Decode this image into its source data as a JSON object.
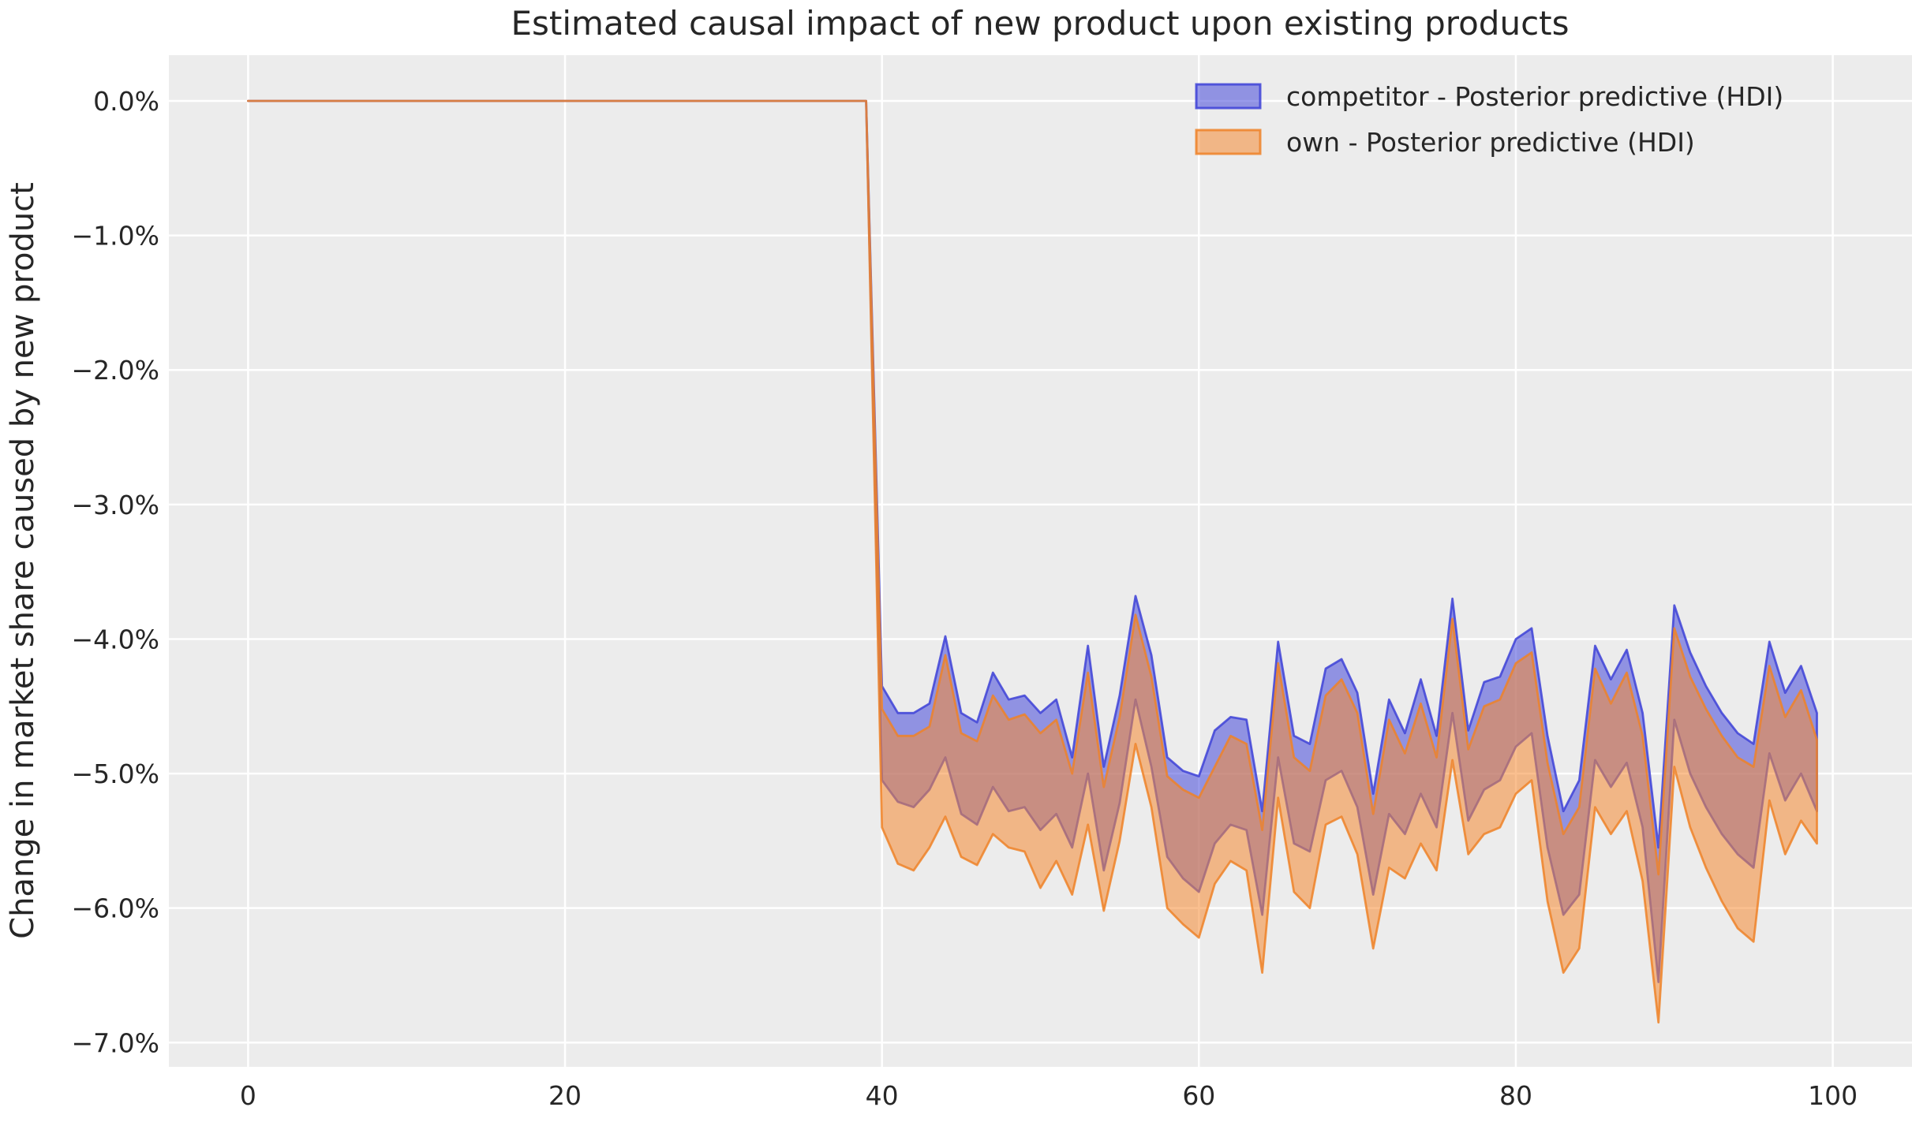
{
  "chart_data": {
    "type": "area",
    "title": "Estimated causal impact of new product upon existing products",
    "ylabel": "Change in market share caused by new product",
    "xlabel": "",
    "plot_bg_color": "#ececec",
    "grid_color": "#ffffff",
    "text_color": "#262626",
    "grid": true,
    "legend_position": "upper-right",
    "xlim": [
      -5,
      105
    ],
    "ylim_pct": [
      -7.18,
      0.34
    ],
    "xticks": [
      {
        "value": 0,
        "label": "0"
      },
      {
        "value": 20,
        "label": "20"
      },
      {
        "value": 40,
        "label": "40"
      },
      {
        "value": 60,
        "label": "60"
      },
      {
        "value": 80,
        "label": "80"
      },
      {
        "value": 100,
        "label": "100"
      }
    ],
    "yticks": [
      {
        "value": 0,
        "label": "0.0%"
      },
      {
        "value": -1,
        "label": "−1.0%"
      },
      {
        "value": -2,
        "label": "−2.0%"
      },
      {
        "value": -3,
        "label": "−3.0%"
      },
      {
        "value": -4,
        "label": "−4.0%"
      },
      {
        "value": -5,
        "label": "−5.0%"
      },
      {
        "value": -6,
        "label": "−6.0%"
      },
      {
        "value": -7,
        "label": "−7.0%"
      }
    ],
    "x": [
      0,
      1,
      2,
      3,
      4,
      5,
      6,
      7,
      8,
      9,
      10,
      11,
      12,
      13,
      14,
      15,
      16,
      17,
      18,
      19,
      20,
      21,
      22,
      23,
      24,
      25,
      26,
      27,
      28,
      29,
      30,
      31,
      32,
      33,
      34,
      35,
      36,
      37,
      38,
      39,
      40,
      41,
      42,
      43,
      44,
      45,
      46,
      47,
      48,
      49,
      50,
      51,
      52,
      53,
      54,
      55,
      56,
      57,
      58,
      59,
      60,
      61,
      62,
      63,
      64,
      65,
      66,
      67,
      68,
      69,
      70,
      71,
      72,
      73,
      74,
      75,
      76,
      77,
      78,
      79,
      80,
      81,
      82,
      83,
      84,
      85,
      86,
      87,
      88,
      89,
      90,
      91,
      92,
      93,
      94,
      95,
      96,
      97,
      98,
      99
    ],
    "treatment_start_x": 40,
    "series": [
      {
        "name": "competitor - Posterior predictive (HDI)",
        "fill_color": "#4549db",
        "fill_opacity": 0.55,
        "edge_color": "#3e42d7",
        "upper_pct": [
          0,
          0,
          0,
          0,
          0,
          0,
          0,
          0,
          0,
          0,
          0,
          0,
          0,
          0,
          0,
          0,
          0,
          0,
          0,
          0,
          0,
          0,
          0,
          0,
          0,
          0,
          0,
          0,
          0,
          0,
          0,
          0,
          0,
          0,
          0,
          0,
          0,
          0,
          0,
          0,
          -4.35,
          -4.55,
          -4.55,
          -4.48,
          -3.98,
          -4.55,
          -4.62,
          -4.25,
          -4.45,
          -4.42,
          -4.55,
          -4.45,
          -4.88,
          -4.05,
          -4.95,
          -4.42,
          -3.68,
          -4.12,
          -4.88,
          -4.98,
          -5.02,
          -4.68,
          -4.58,
          -4.6,
          -5.28,
          -4.02,
          -4.72,
          -4.78,
          -4.22,
          -4.15,
          -4.4,
          -5.15,
          -4.45,
          -4.7,
          -4.3,
          -4.72,
          -3.7,
          -4.68,
          -4.32,
          -4.28,
          -4.0,
          -3.92,
          -4.72,
          -5.28,
          -5.05,
          -4.05,
          -4.3,
          -4.08,
          -4.55,
          -5.55,
          -3.75,
          -4.1,
          -4.35,
          -4.55,
          -4.7,
          -4.78,
          -4.02,
          -4.4,
          -4.2,
          -4.55
        ],
        "lower_pct": [
          0,
          0,
          0,
          0,
          0,
          0,
          0,
          0,
          0,
          0,
          0,
          0,
          0,
          0,
          0,
          0,
          0,
          0,
          0,
          0,
          0,
          0,
          0,
          0,
          0,
          0,
          0,
          0,
          0,
          0,
          0,
          0,
          0,
          0,
          0,
          0,
          0,
          0,
          0,
          0,
          -5.05,
          -5.21,
          -5.25,
          -5.12,
          -4.88,
          -5.3,
          -5.38,
          -5.1,
          -5.28,
          -5.25,
          -5.42,
          -5.3,
          -5.55,
          -5.0,
          -5.72,
          -5.22,
          -4.45,
          -4.95,
          -5.62,
          -5.78,
          -5.88,
          -5.52,
          -5.38,
          -5.42,
          -6.05,
          -4.88,
          -5.52,
          -5.58,
          -5.05,
          -4.98,
          -5.25,
          -5.9,
          -5.3,
          -5.45,
          -5.15,
          -5.4,
          -4.55,
          -5.35,
          -5.12,
          -5.05,
          -4.8,
          -4.7,
          -5.55,
          -6.05,
          -5.9,
          -4.9,
          -5.1,
          -4.92,
          -5.4,
          -6.55,
          -4.6,
          -5.0,
          -5.25,
          -5.45,
          -5.6,
          -5.7,
          -4.85,
          -5.2,
          -5.0,
          -5.28
        ]
      },
      {
        "name": "own - Posterior predictive (HDI)",
        "fill_color": "#f68b33",
        "fill_opacity": 0.55,
        "edge_color": "#ef8228",
        "upper_pct": [
          0,
          0,
          0,
          0,
          0,
          0,
          0,
          0,
          0,
          0,
          0,
          0,
          0,
          0,
          0,
          0,
          0,
          0,
          0,
          0,
          0,
          0,
          0,
          0,
          0,
          0,
          0,
          0,
          0,
          0,
          0,
          0,
          0,
          0,
          0,
          0,
          0,
          0,
          0,
          0,
          -4.52,
          -4.72,
          -4.72,
          -4.65,
          -4.12,
          -4.7,
          -4.76,
          -4.42,
          -4.6,
          -4.56,
          -4.7,
          -4.6,
          -5.0,
          -4.25,
          -5.1,
          -4.58,
          -3.82,
          -4.28,
          -5.02,
          -5.12,
          -5.18,
          -4.95,
          -4.72,
          -4.78,
          -5.42,
          -4.18,
          -4.88,
          -4.98,
          -4.42,
          -4.3,
          -4.55,
          -5.3,
          -4.6,
          -4.85,
          -4.48,
          -4.88,
          -3.85,
          -4.82,
          -4.5,
          -4.45,
          -4.18,
          -4.1,
          -4.92,
          -5.45,
          -5.25,
          -4.22,
          -4.48,
          -4.25,
          -4.72,
          -5.75,
          -3.92,
          -4.28,
          -4.52,
          -4.72,
          -4.88,
          -4.95,
          -4.2,
          -4.58,
          -4.38,
          -4.75
        ],
        "lower_pct": [
          0,
          0,
          0,
          0,
          0,
          0,
          0,
          0,
          0,
          0,
          0,
          0,
          0,
          0,
          0,
          0,
          0,
          0,
          0,
          0,
          0,
          0,
          0,
          0,
          0,
          0,
          0,
          0,
          0,
          0,
          0,
          0,
          0,
          0,
          0,
          0,
          0,
          0,
          0,
          0,
          -5.4,
          -5.67,
          -5.72,
          -5.55,
          -5.32,
          -5.62,
          -5.68,
          -5.45,
          -5.55,
          -5.58,
          -5.85,
          -5.65,
          -5.9,
          -5.38,
          -6.02,
          -5.5,
          -4.78,
          -5.25,
          -6.0,
          -6.12,
          -6.22,
          -5.82,
          -5.65,
          -5.72,
          -6.48,
          -5.18,
          -5.88,
          -6.0,
          -5.38,
          -5.32,
          -5.6,
          -6.3,
          -5.7,
          -5.78,
          -5.52,
          -5.72,
          -4.9,
          -5.6,
          -5.45,
          -5.4,
          -5.15,
          -5.05,
          -5.95,
          -6.48,
          -6.3,
          -5.25,
          -5.45,
          -5.28,
          -5.8,
          -6.85,
          -4.95,
          -5.4,
          -5.7,
          -5.95,
          -6.15,
          -6.25,
          -5.2,
          -5.6,
          -5.35,
          -5.52
        ]
      }
    ]
  }
}
